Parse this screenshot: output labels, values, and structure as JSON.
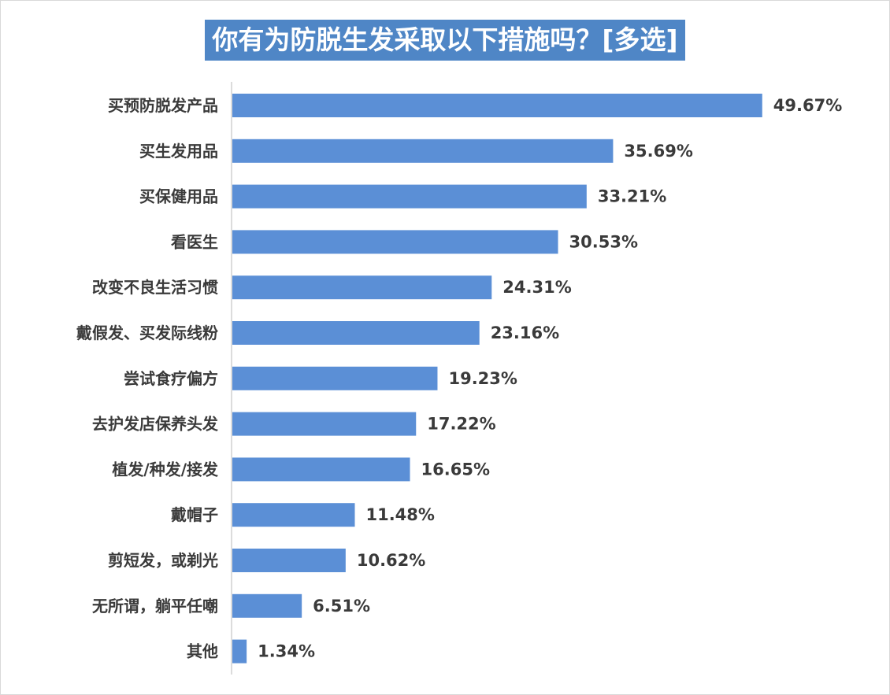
{
  "chart_data": {
    "type": "bar",
    "orientation": "horizontal",
    "title": "你有为防脱生发采取以下措施吗？[多选]",
    "categories": [
      "买预防脱发产品",
      "买生发用品",
      "买保健用品",
      "看医生",
      "改变不良生活习惯",
      "戴假发、买发际线粉",
      "尝试食疗偏方",
      "去护发店保养头发",
      "植发/种发/接发",
      "戴帽子",
      "剪短发，或剃光",
      "无所谓，躺平任嘲",
      "其他"
    ],
    "values": [
      49.67,
      35.69,
      33.21,
      30.53,
      24.31,
      23.16,
      19.23,
      17.22,
      16.65,
      11.48,
      10.62,
      6.51,
      1.34
    ],
    "value_labels": [
      "49.67%",
      "35.69%",
      "33.21%",
      "30.53%",
      "24.31%",
      "23.16%",
      "19.23%",
      "17.22%",
      "16.65%",
      "11.48%",
      "10.62%",
      "6.51%",
      "1.34%"
    ],
    "unit": "%",
    "xlim": [
      0,
      50
    ],
    "grid": false,
    "legend": "none",
    "bar_color": "#5b8fd6",
    "title_bg_color": "#4f86c6"
  }
}
